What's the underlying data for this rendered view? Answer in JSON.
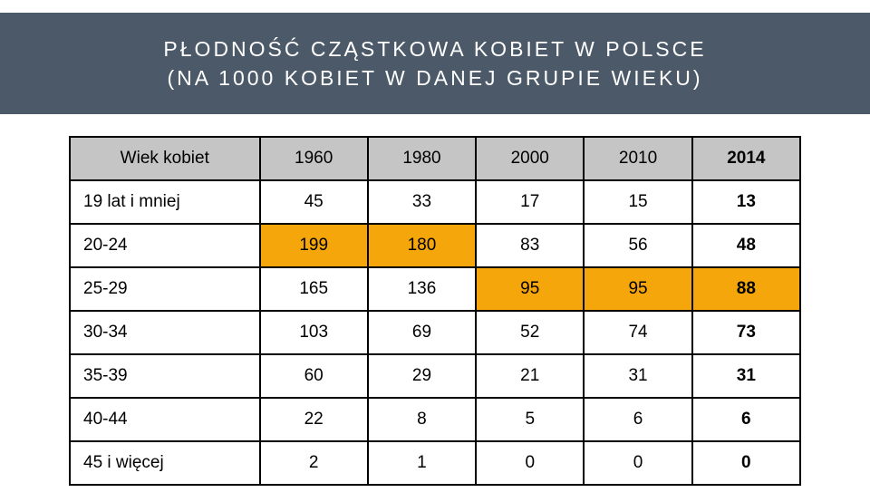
{
  "header": {
    "line1": "PŁODNOŚĆ CZĄSTKOWA KOBIET W POLSCE",
    "line2": "(NA 1000 KOBIET W DANEJ GRUPIE WIEKU)"
  },
  "table": {
    "type": "table",
    "background_color": "#ffffff",
    "header_bg": "#c5c5c5",
    "highlight_bg": "#f5a60a",
    "border_color": "#000000",
    "cell_fontsize": 19,
    "columns": [
      "Wiek kobiet",
      "1960",
      "1980",
      "2000",
      "2010",
      "2014"
    ],
    "last_column_bold": true,
    "rows": [
      {
        "label": "19 lat i mniej",
        "values": [
          "45",
          "33",
          "17",
          "15",
          "13"
        ],
        "highlight_indices": []
      },
      {
        "label": "20-24",
        "values": [
          "199",
          "180",
          "83",
          "56",
          "48"
        ],
        "highlight_indices": [
          0,
          1
        ]
      },
      {
        "label": "25-29",
        "values": [
          "165",
          "136",
          "95",
          "95",
          "88"
        ],
        "highlight_indices": [
          2,
          3,
          4
        ]
      },
      {
        "label": "30-34",
        "values": [
          "103",
          "69",
          "52",
          "74",
          "73"
        ],
        "highlight_indices": []
      },
      {
        "label": "35-39",
        "values": [
          "60",
          "29",
          "21",
          "31",
          "31"
        ],
        "highlight_indices": []
      },
      {
        "label": "40-44",
        "values": [
          "22",
          "8",
          "5",
          "6",
          "6"
        ],
        "highlight_indices": []
      },
      {
        "label": "45 i więcej",
        "values": [
          "2",
          "1",
          "0",
          "0",
          "0"
        ],
        "highlight_indices": []
      }
    ]
  }
}
